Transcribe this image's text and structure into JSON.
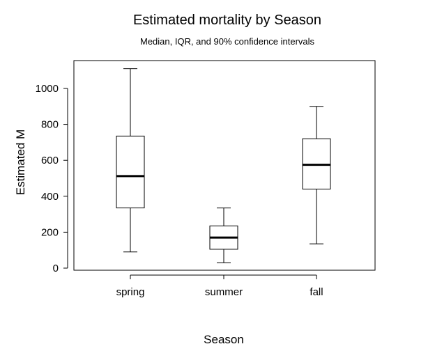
{
  "chart_data": {
    "type": "box",
    "title": "Estimated mortality by Season",
    "subtitle": "Median, IQR, and 90% confidence intervals",
    "xlabel": "Season",
    "ylabel": "Estimated M",
    "categories": [
      "spring",
      "summer",
      "fall"
    ],
    "boxes": [
      {
        "category": "spring",
        "whisker_low": 90,
        "q1": 335,
        "median": 512,
        "q3": 735,
        "whisker_high": 1110
      },
      {
        "category": "summer",
        "whisker_low": 30,
        "q1": 105,
        "median": 170,
        "q3": 235,
        "whisker_high": 335
      },
      {
        "category": "fall",
        "whisker_low": 135,
        "q1": 440,
        "median": 575,
        "q3": 720,
        "whisker_high": 900
      }
    ],
    "yticks": [
      0,
      200,
      400,
      600,
      800,
      1000
    ],
    "ylim": [
      -10,
      1150
    ],
    "grid": false,
    "legend": "none",
    "colors": {
      "box": "#000000",
      "median": "#000000",
      "background": "#ffffff"
    }
  }
}
